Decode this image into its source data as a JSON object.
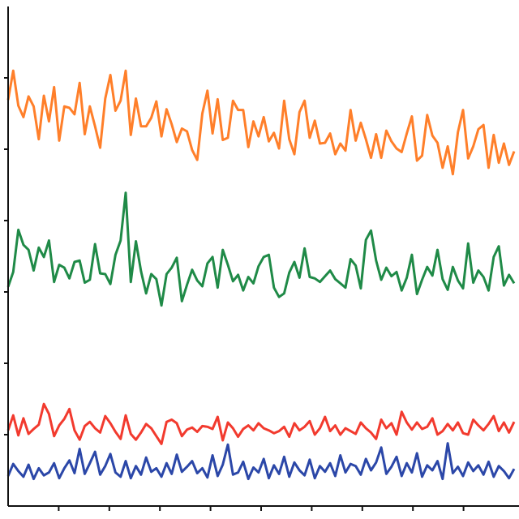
{
  "chart_data": {
    "type": "line",
    "title": "",
    "xlabel": "",
    "ylabel": "",
    "grid": false,
    "legend": "none",
    "x_range": [
      0,
      100
    ],
    "y_range": [
      0,
      7
    ],
    "x_ticks": [
      10,
      20,
      30,
      40,
      50,
      60,
      70,
      80,
      90
    ],
    "y_ticks": [
      1,
      2,
      3,
      4,
      5,
      6
    ],
    "series": [
      {
        "color": "#ff7f2a",
        "values": [
          5.69,
          6.1,
          5.61,
          5.45,
          5.74,
          5.6,
          5.14,
          5.75,
          5.39,
          5.87,
          5.12,
          5.6,
          5.58,
          5.49,
          5.93,
          5.21,
          5.6,
          5.32,
          5.02,
          5.71,
          6.04,
          5.54,
          5.68,
          6.1,
          5.2,
          5.71,
          5.32,
          5.32,
          5.44,
          5.67,
          5.18,
          5.56,
          5.35,
          5.1,
          5.29,
          5.25,
          4.99,
          4.85,
          5.5,
          5.82,
          5.22,
          5.7,
          5.13,
          5.16,
          5.68,
          5.55,
          5.55,
          5.03,
          5.39,
          5.18,
          5.45,
          5.11,
          5.23,
          5.01,
          5.68,
          5.14,
          4.93,
          5.52,
          5.68,
          5.16,
          5.4,
          5.08,
          5.09,
          5.22,
          4.93,
          5.08,
          4.98,
          5.55,
          5.12,
          5.37,
          5.14,
          4.88,
          5.21,
          4.88,
          5.26,
          5.11,
          5.01,
          4.96,
          5.22,
          5.46,
          4.84,
          4.91,
          5.48,
          5.19,
          5.09,
          4.74,
          5.04,
          4.65,
          5.24,
          5.55,
          4.87,
          5.04,
          5.28,
          5.34,
          4.74,
          5.2,
          4.81,
          5.08,
          4.78,
          4.97
        ]
      },
      {
        "color": "#1f8a47",
        "values": [
          3.07,
          3.28,
          3.87,
          3.66,
          3.59,
          3.3,
          3.62,
          3.49,
          3.72,
          3.14,
          3.38,
          3.34,
          3.19,
          3.42,
          3.44,
          3.13,
          3.17,
          3.67,
          3.26,
          3.25,
          3.11,
          3.52,
          3.72,
          4.39,
          3.14,
          3.71,
          3.29,
          2.98,
          3.25,
          3.18,
          2.81,
          3.25,
          3.34,
          3.48,
          2.87,
          3.1,
          3.31,
          3.16,
          3.08,
          3.4,
          3.49,
          3.06,
          3.59,
          3.38,
          3.15,
          3.24,
          3.02,
          3.21,
          3.12,
          3.36,
          3.49,
          3.52,
          3.06,
          2.93,
          2.98,
          3.27,
          3.42,
          3.2,
          3.61,
          3.21,
          3.19,
          3.14,
          3.22,
          3.3,
          3.18,
          3.12,
          3.06,
          3.46,
          3.37,
          3.05,
          3.73,
          3.86,
          3.44,
          3.17,
          3.34,
          3.22,
          3.28,
          3.02,
          3.2,
          3.52,
          2.97,
          3.17,
          3.35,
          3.23,
          3.59,
          3.18,
          3.03,
          3.35,
          3.16,
          3.05,
          3.68,
          3.13,
          3.3,
          3.21,
          3.02,
          3.49,
          3.64,
          3.09,
          3.24,
          3.12
        ]
      },
      {
        "color": "#f23a2e",
        "values": [
          1.06,
          1.27,
          0.99,
          1.23,
          1.01,
          1.08,
          1.14,
          1.43,
          1.29,
          0.98,
          1.13,
          1.22,
          1.36,
          1.06,
          0.93,
          1.12,
          1.18,
          1.09,
          1.03,
          1.26,
          1.16,
          1.04,
          0.94,
          1.27,
          1.01,
          0.93,
          1.03,
          1.15,
          1.09,
          0.98,
          0.87,
          1.18,
          1.21,
          1.16,
          0.98,
          1.07,
          1.1,
          1.04,
          1.12,
          1.11,
          1.08,
          1.25,
          0.92,
          1.17,
          1.09,
          0.97,
          1.08,
          1.13,
          1.06,
          1.16,
          1.09,
          1.06,
          1.02,
          1.05,
          1.11,
          0.97,
          1.16,
          1.06,
          1.11,
          1.19,
          1.0,
          1.09,
          1.25,
          1.05,
          1.13,
          1.0,
          1.09,
          1.05,
          1.01,
          1.17,
          1.09,
          1.03,
          0.94,
          1.21,
          1.09,
          1.16,
          1.0,
          1.32,
          1.17,
          1.07,
          1.17,
          1.08,
          1.11,
          1.23,
          1.0,
          1.05,
          1.15,
          1.06,
          1.17,
          1.02,
          1.0,
          1.21,
          1.13,
          1.06,
          1.15,
          1.26,
          1.05,
          1.17,
          1.03,
          1.18
        ]
      },
      {
        "color": "#2b47a8",
        "values": [
          0.42,
          0.59,
          0.49,
          0.41,
          0.58,
          0.38,
          0.53,
          0.43,
          0.47,
          0.6,
          0.39,
          0.53,
          0.64,
          0.46,
          0.8,
          0.45,
          0.6,
          0.76,
          0.44,
          0.56,
          0.73,
          0.47,
          0.41,
          0.63,
          0.39,
          0.56,
          0.44,
          0.68,
          0.48,
          0.53,
          0.41,
          0.6,
          0.45,
          0.72,
          0.48,
          0.55,
          0.63,
          0.46,
          0.53,
          0.4,
          0.71,
          0.42,
          0.58,
          0.86,
          0.44,
          0.47,
          0.62,
          0.38,
          0.54,
          0.47,
          0.66,
          0.39,
          0.57,
          0.45,
          0.69,
          0.41,
          0.61,
          0.5,
          0.43,
          0.65,
          0.39,
          0.56,
          0.48,
          0.6,
          0.42,
          0.71,
          0.47,
          0.59,
          0.56,
          0.44,
          0.66,
          0.5,
          0.61,
          0.82,
          0.45,
          0.55,
          0.69,
          0.42,
          0.6,
          0.47,
          0.74,
          0.41,
          0.57,
          0.5,
          0.63,
          0.38,
          0.88,
          0.46,
          0.55,
          0.42,
          0.61,
          0.49,
          0.57,
          0.44,
          0.62,
          0.41,
          0.56,
          0.49,
          0.39,
          0.52
        ]
      }
    ]
  }
}
